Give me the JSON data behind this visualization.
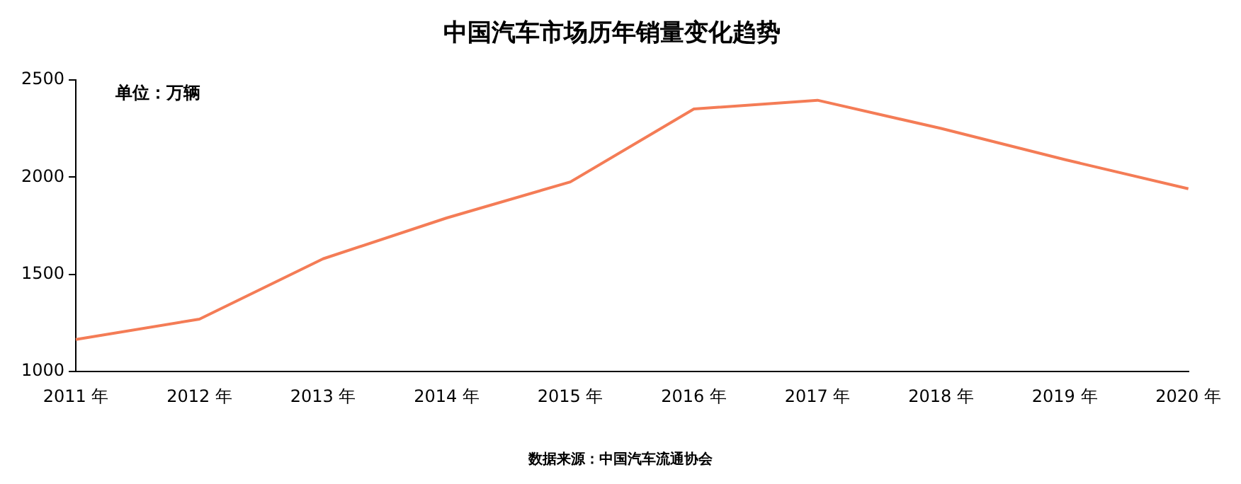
{
  "chart_data": {
    "type": "line",
    "title": "中国汽车市场历年销量变化趋势",
    "categories": [
      "2011 年",
      "2012 年",
      "2013 年",
      "2014 年",
      "2015 年",
      "2016 年",
      "2017 年",
      "2018 年",
      "2019 年",
      "2020 年"
    ],
    "series": [
      {
        "color": "#f47c56",
        "values": [
          1165,
          1270,
          1580,
          1790,
          1975,
          2350,
          2395,
          2250,
          2090,
          1940
        ]
      }
    ],
    "ylim": [
      1000,
      2500
    ],
    "yticks": [
      1000,
      1500,
      2000,
      2500
    ],
    "grid": false,
    "legend": false,
    "marker": "none",
    "line_style": "solid",
    "annotations": [
      "单位：万辆",
      "数据来源：中国汽车流通协会"
    ]
  }
}
